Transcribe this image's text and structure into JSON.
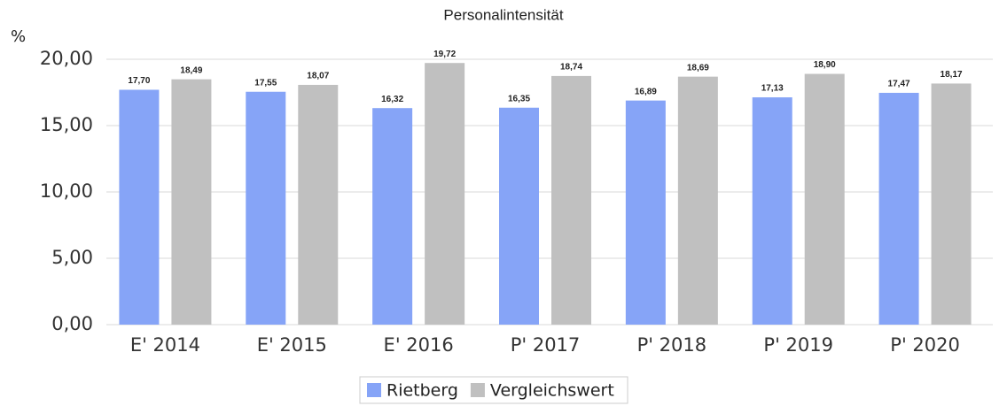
{
  "chart_data": {
    "type": "bar",
    "title": "Personalintensität",
    "y_label": "%",
    "categories": [
      "E' 2014",
      "E' 2015",
      "E' 2016",
      "P' 2017",
      "P' 2018",
      "P' 2019",
      "P' 2020"
    ],
    "series": [
      {
        "name": "Rietberg",
        "color": "#86a4f7",
        "values": [
          17.7,
          17.55,
          16.32,
          16.35,
          16.89,
          17.13,
          17.47
        ],
        "value_labels": [
          "17,70",
          "17,55",
          "16,32",
          "16,35",
          "16,89",
          "17,13",
          "17,47"
        ]
      },
      {
        "name": "Vergleichswert",
        "color": "#c0c0c0",
        "values": [
          18.49,
          18.07,
          19.72,
          18.74,
          18.69,
          18.9,
          18.17
        ],
        "value_labels": [
          "18,49",
          "18,07",
          "19,72",
          "18,74",
          "18,69",
          "18,90",
          "18,17"
        ]
      }
    ],
    "ylim": [
      0,
      20
    ],
    "yticks": [
      {
        "value": 0,
        "label": "0,00"
      },
      {
        "value": 5,
        "label": "5,00"
      },
      {
        "value": 10,
        "label": "10,00"
      },
      {
        "value": 15,
        "label": "15,00"
      },
      {
        "value": 20,
        "label": "20,00"
      }
    ],
    "grid": true,
    "legend": "bottom"
  }
}
